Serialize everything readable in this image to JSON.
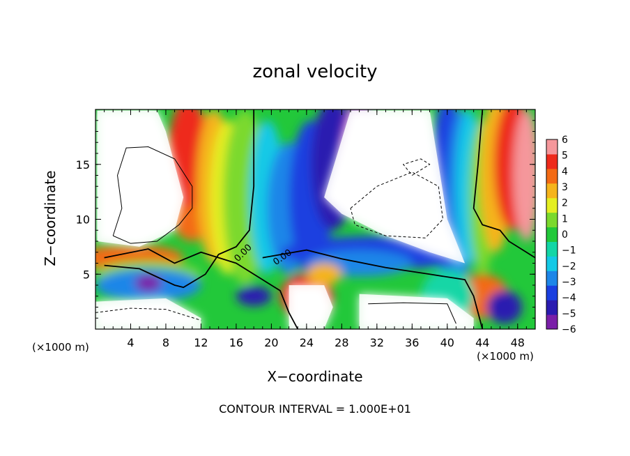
{
  "chart_data": {
    "type": "heatmap",
    "title": "zonal velocity",
    "xlabel": "X−coordinate",
    "ylabel": "Z−coordinate",
    "x_unit_label": "(×1000 m)",
    "xlim": [
      0,
      50
    ],
    "ylim": [
      0,
      20
    ],
    "x_ticks": [
      4,
      8,
      12,
      16,
      20,
      24,
      28,
      32,
      36,
      40,
      44,
      48
    ],
    "y_ticks": [
      5,
      10,
      15
    ],
    "colorbar": {
      "ticks": [
        6,
        5,
        4,
        3,
        2,
        1,
        0,
        -1,
        -2,
        -3,
        -4,
        -5,
        -6
      ],
      "range": [
        -6,
        6
      ],
      "colors": [
        "#7a1fa8",
        "#2a1bb0",
        "#1a3fe0",
        "#1d86e8",
        "#14c9e6",
        "#13d6a6",
        "#22c83a",
        "#7bd92d",
        "#e4ee22",
        "#f5b41c",
        "#f36a14",
        "#ee2a1b",
        "#f5979b"
      ]
    },
    "contour_interval_text": "CONTOUR INTERVAL = 1.000E+01",
    "contour_label": "0.00",
    "summary": {
      "max_east_jet": {
        "x_range": [
          8,
          14
        ],
        "z_range": [
          6,
          20
        ],
        "value": 6
      },
      "max_west_jet": {
        "x_range": [
          20,
          30
        ],
        "z_range": [
          6,
          20
        ],
        "value": -6
      },
      "west_jet_right": {
        "x_range": [
          38,
          44
        ],
        "z_range": [
          6,
          20
        ],
        "value": -6
      },
      "east_jet_right": {
        "x_range": [
          45,
          50
        ],
        "z_range": [
          6,
          20
        ],
        "value": 6
      },
      "saturated_regions": "white"
    }
  }
}
